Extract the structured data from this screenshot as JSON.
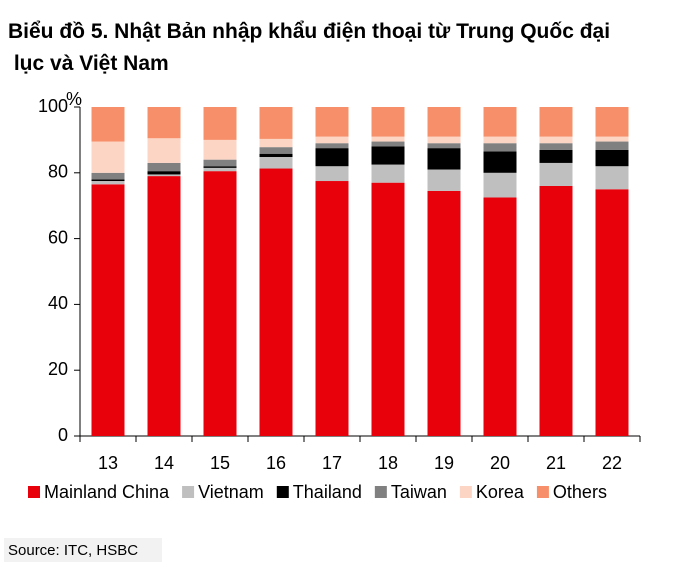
{
  "chart_data": {
    "type": "stacked_bar",
    "title": "Biểu đồ 5. Nhật Bản nhập khẩu điện thoại từ Trung Quốc đại lục và Việt Nam",
    "y_unit": "%",
    "source": "Source: ITC, HSBC",
    "categories": [
      "13",
      "14",
      "15",
      "16",
      "17",
      "18",
      "19",
      "20",
      "21",
      "22"
    ],
    "series": [
      {
        "name": "Mainland China",
        "color": "#e8000b",
        "values": [
          76.5,
          79,
          80.5,
          81.3,
          77.5,
          77,
          74.5,
          72.5,
          76,
          75
        ]
      },
      {
        "name": "Vietnam",
        "color": "#bfbfbf",
        "values": [
          1,
          0.5,
          1,
          3.5,
          4.5,
          5.5,
          6.5,
          7.5,
          7,
          7
        ]
      },
      {
        "name": "Thailand",
        "color": "#000000",
        "values": [
          0.5,
          1,
          0.5,
          1,
          5.5,
          5.5,
          6.5,
          6.5,
          4,
          5
        ]
      },
      {
        "name": "Taiwan",
        "color": "#808080",
        "values": [
          2,
          2.5,
          2,
          2,
          1.5,
          1.5,
          1.5,
          2.5,
          2,
          2.5
        ]
      },
      {
        "name": "Korea",
        "color": "#fcd5c5",
        "values": [
          9.5,
          7.5,
          6,
          2.5,
          2,
          1.5,
          2,
          2,
          2,
          1.5
        ]
      },
      {
        "name": "Others",
        "color": "#f7906a",
        "values": [
          10.5,
          9.5,
          10,
          9.7,
          9,
          9,
          9,
          9,
          9,
          9
        ]
      }
    ],
    "ylim": [
      0,
      100
    ],
    "yticks": [
      0,
      20,
      40,
      60,
      80,
      100
    ],
    "grid": false
  }
}
